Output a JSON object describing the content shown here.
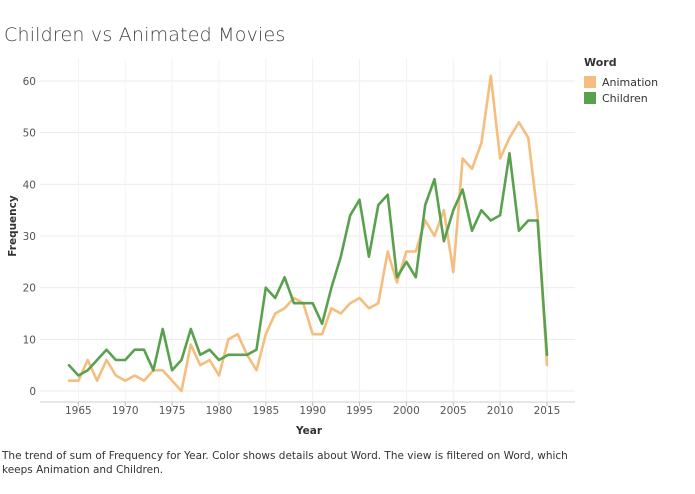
{
  "title": "Children vs Animated Movies",
  "legend": {
    "title": "Word",
    "items": [
      {
        "label": "Animation",
        "color": "#f5bd7e"
      },
      {
        "label": "Children",
        "color": "#59a14f"
      }
    ]
  },
  "caption": "The trend of sum of Frequency for Year.  Color shows details about Word. The view is filtered on Word, which keeps Animation and Children.",
  "chart_data": {
    "type": "line",
    "xlabel": "Year",
    "ylabel": "Frequency",
    "xlim": [
      1961,
      1918
    ],
    "ylim": [
      0,
      65
    ],
    "xticks": [
      1965,
      1970,
      1975,
      1980,
      1985,
      1990,
      1995,
      2000,
      2005,
      2010,
      2015
    ],
    "yticks": [
      0,
      10,
      20,
      30,
      40,
      50,
      60
    ],
    "grid": true,
    "legend_position": "top-right",
    "x": [
      1964,
      1965,
      1966,
      1967,
      1968,
      1969,
      1970,
      1971,
      1972,
      1973,
      1974,
      1975,
      1976,
      1977,
      1978,
      1979,
      1980,
      1981,
      1982,
      1983,
      1984,
      1985,
      1986,
      1987,
      1988,
      1989,
      1990,
      1991,
      1992,
      1993,
      1994,
      1995,
      1996,
      1997,
      1998,
      1999,
      2000,
      2001,
      2002,
      2003,
      2004,
      2005,
      2006,
      2007,
      2008,
      2009,
      2010,
      2011,
      2012,
      2013,
      2014,
      2015
    ],
    "series": [
      {
        "name": "Animation",
        "color": "#f5bd7e",
        "values": [
          2,
          2,
          6,
          2,
          6,
          3,
          2,
          3,
          2,
          4,
          4,
          2,
          0,
          9,
          5,
          6,
          3,
          10,
          11,
          7,
          4,
          11,
          15,
          16,
          18,
          17,
          11,
          11,
          16,
          15,
          17,
          18,
          16,
          17,
          27,
          21,
          27,
          27,
          33,
          30,
          35,
          23,
          45,
          43,
          48,
          61,
          45,
          49,
          52,
          49,
          34,
          5
        ]
      },
      {
        "name": "Children",
        "color": "#59a14f",
        "values": [
          5,
          3,
          4,
          6,
          8,
          6,
          6,
          8,
          8,
          4,
          12,
          4,
          6,
          12,
          7,
          8,
          6,
          7,
          7,
          7,
          8,
          20,
          18,
          22,
          17,
          17,
          17,
          13,
          20,
          26,
          34,
          37,
          26,
          36,
          38,
          22,
          25,
          22,
          36,
          41,
          29,
          35,
          39,
          31,
          35,
          33,
          34,
          46,
          31,
          33,
          33,
          7
        ]
      }
    ]
  }
}
